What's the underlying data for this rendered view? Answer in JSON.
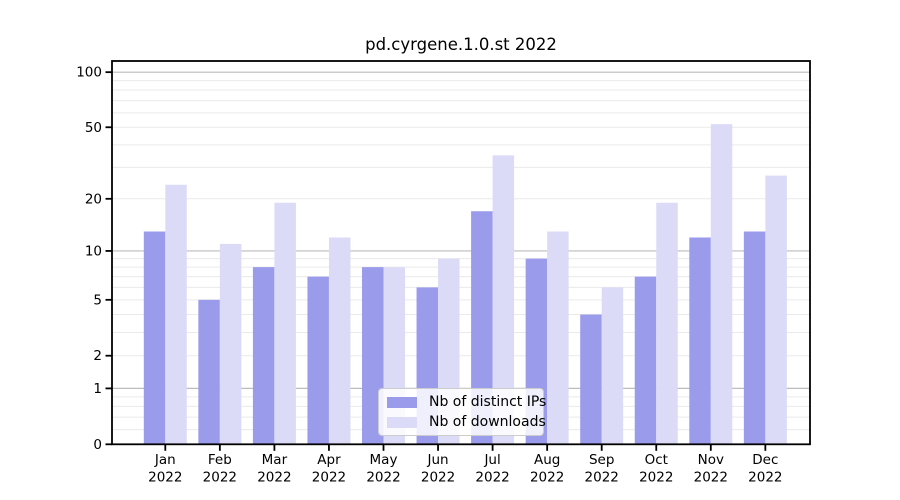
{
  "title": "pd.cyrgene.1.0.st 2022",
  "legend": {
    "items": [
      {
        "label": "Nb of distinct IPs",
        "color": "#9b9bec"
      },
      {
        "label": "Nb of downloads",
        "color": "#dbdbf7"
      }
    ]
  },
  "chart_data": {
    "type": "bar",
    "title": "pd.cyrgene.1.0.st 2022",
    "x_tick_months": [
      "Jan",
      "Feb",
      "Mar",
      "Apr",
      "May",
      "Jun",
      "Jul",
      "Aug",
      "Sep",
      "Oct",
      "Nov",
      "Dec"
    ],
    "x_tick_year": "2022",
    "series": [
      {
        "name": "Nb of distinct IPs",
        "color": "#9b9bec",
        "values": [
          13,
          5,
          8,
          7,
          8,
          6,
          17,
          9,
          4,
          7,
          12,
          13
        ]
      },
      {
        "name": "Nb of downloads",
        "color": "#dbdbf7",
        "values": [
          24,
          11,
          19,
          12,
          8,
          9,
          35,
          13,
          6,
          19,
          52,
          27
        ]
      }
    ],
    "yscale": "log1p",
    "ylim": [
      0,
      115
    ],
    "y_ticks": [
      0,
      1,
      2,
      5,
      10,
      20,
      50,
      100
    ],
    "y_tick_labels": [
      "0",
      "1",
      "2",
      "5",
      "10",
      "20",
      "50",
      "100"
    ],
    "y_major_grid": [
      1,
      10,
      100
    ],
    "y_minor_grid": [
      0.2,
      0.4,
      0.6,
      0.8,
      2,
      3,
      4,
      5,
      6,
      7,
      8,
      9,
      20,
      30,
      40,
      50,
      60,
      70,
      80,
      90
    ],
    "grid": true,
    "legend_position": "lower center",
    "colors": {
      "background": "#ffffff",
      "axis": "#000000",
      "major_grid": "#bcbcbc",
      "minor_grid": "#eaeaea",
      "tick_text": "#000000"
    }
  }
}
